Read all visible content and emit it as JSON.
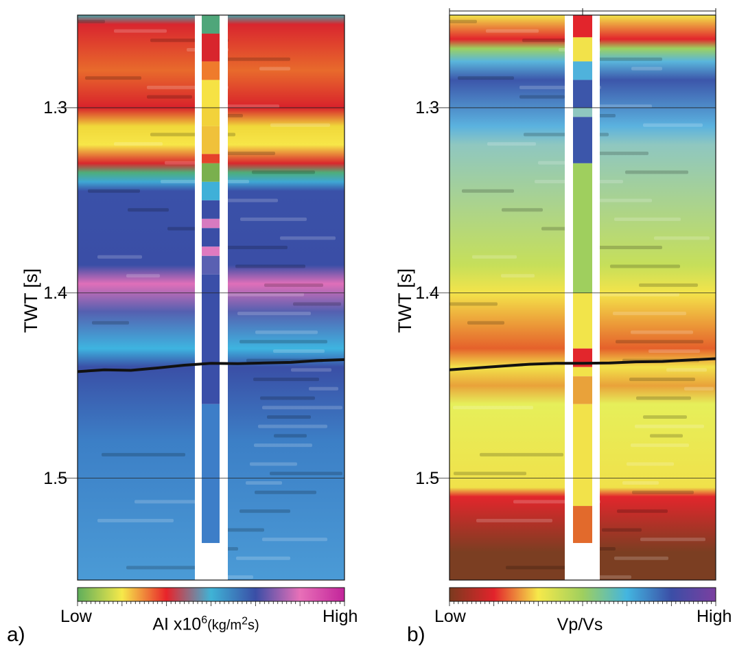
{
  "chart_data": [
    {
      "type": "heatmap",
      "panel_label": "a)",
      "ylabel": "TWT [s]",
      "yticks": [
        1.3,
        1.4,
        1.5
      ],
      "ylim": [
        1.25,
        1.555
      ],
      "colorbar": {
        "low": "Low",
        "high": "High",
        "title_main": "AI x10",
        "title_exp": "6",
        "title_unit_pre": "(kg/m",
        "title_unit_exp": "2",
        "title_unit_post": "s)",
        "colors": [
          "#5fae5b",
          "#f6e94a",
          "#e8232a",
          "#3fb3d6",
          "#3a4ea6",
          "#e870b8",
          "#c2249a"
        ]
      },
      "layers": [
        {
          "twt": 1.25,
          "color": "#4aa3a8"
        },
        {
          "twt": 1.255,
          "color": "#d9262e"
        },
        {
          "twt": 1.28,
          "color": "#e86a2c"
        },
        {
          "twt": 1.3,
          "color": "#d8222b"
        },
        {
          "twt": 1.31,
          "color": "#f0d83a"
        },
        {
          "twt": 1.32,
          "color": "#f7e648"
        },
        {
          "twt": 1.33,
          "color": "#d9272d"
        },
        {
          "twt": 1.335,
          "color": "#4eae7a"
        },
        {
          "twt": 1.34,
          "color": "#3fa7d4"
        },
        {
          "twt": 1.345,
          "color": "#3a51a8"
        },
        {
          "twt": 1.385,
          "color": "#3a4ea6"
        },
        {
          "twt": 1.395,
          "color": "#e06fb9"
        },
        {
          "twt": 1.41,
          "color": "#5560b0"
        },
        {
          "twt": 1.43,
          "color": "#3eb4e0"
        },
        {
          "twt": 1.44,
          "color": "#3a4fa6"
        },
        {
          "twt": 1.48,
          "color": "#3c7fc6"
        },
        {
          "twt": 1.555,
          "color": "#4b9bd6"
        }
      ],
      "horizon": {
        "x": [
          0,
          0.1,
          0.2,
          0.3,
          0.4,
          0.5,
          0.6,
          0.7,
          0.8,
          0.9,
          1.0
        ],
        "twt": [
          1.4425,
          1.4415,
          1.4418,
          1.4405,
          1.439,
          1.438,
          1.4382,
          1.4378,
          1.4375,
          1.4365,
          1.436
        ],
        "color": "#111111"
      },
      "well_log": [
        {
          "twt": 1.25,
          "color": "#4fa67a"
        },
        {
          "twt": 1.26,
          "color": "#d8262d"
        },
        {
          "twt": 1.275,
          "color": "#ef7b2c"
        },
        {
          "twt": 1.285,
          "color": "#f6e244"
        },
        {
          "twt": 1.3,
          "color": "#f2d23a"
        },
        {
          "twt": 1.31,
          "color": "#f0c13a"
        },
        {
          "twt": 1.325,
          "color": "#e5422b"
        },
        {
          "twt": 1.33,
          "color": "#7ab04e"
        },
        {
          "twt": 1.34,
          "color": "#3fb0d8"
        },
        {
          "twt": 1.35,
          "color": "#3a4ea6"
        },
        {
          "twt": 1.36,
          "color": "#d77ac0"
        },
        {
          "twt": 1.365,
          "color": "#3a4ea6"
        },
        {
          "twt": 1.375,
          "color": "#e07ac0"
        },
        {
          "twt": 1.38,
          "color": "#5a60b2"
        },
        {
          "twt": 1.39,
          "color": "#3a4fa8"
        },
        {
          "twt": 1.46,
          "color": "#3d7ec8"
        },
        {
          "twt": 1.535,
          "color": "#ffffff"
        }
      ]
    },
    {
      "type": "heatmap",
      "panel_label": "b)",
      "ylabel": "TWT [s]",
      "yticks": [
        1.3,
        1.4,
        1.5
      ],
      "ylim": [
        1.25,
        1.555
      ],
      "colorbar": {
        "low": "Low",
        "high": "High",
        "title": "Vp/Vs",
        "colors": [
          "#7a3a1e",
          "#e2232b",
          "#f6e94a",
          "#9fcf5e",
          "#43b5e0",
          "#3b4ea6",
          "#7b3fa0"
        ]
      },
      "layers": [
        {
          "twt": 1.25,
          "color": "#f2e64a"
        },
        {
          "twt": 1.263,
          "color": "#e2252c"
        },
        {
          "twt": 1.268,
          "color": "#9cd15f"
        },
        {
          "twt": 1.275,
          "color": "#5ab6dc"
        },
        {
          "twt": 1.285,
          "color": "#3c56aa"
        },
        {
          "twt": 1.31,
          "color": "#5bb2df"
        },
        {
          "twt": 1.32,
          "color": "#8fc7c0"
        },
        {
          "twt": 1.385,
          "color": "#c6df5a"
        },
        {
          "twt": 1.4,
          "color": "#f4e44a"
        },
        {
          "twt": 1.43,
          "color": "#e5612b"
        },
        {
          "twt": 1.44,
          "color": "#f2e24a"
        },
        {
          "twt": 1.45,
          "color": "#e9a23a"
        },
        {
          "twt": 1.46,
          "color": "#e6ef5a"
        },
        {
          "twt": 1.505,
          "color": "#f0e14a"
        },
        {
          "twt": 1.51,
          "color": "#e2262c"
        },
        {
          "twt": 1.54,
          "color": "#7b3e22"
        },
        {
          "twt": 1.555,
          "color": "#7b3e22"
        }
      ],
      "horizon": {
        "x": [
          0,
          0.1,
          0.2,
          0.3,
          0.4,
          0.5,
          0.6,
          0.7,
          0.8,
          0.9,
          1.0
        ],
        "twt": [
          1.4415,
          1.4405,
          1.4395,
          1.4385,
          1.438,
          1.438,
          1.4378,
          1.4372,
          1.437,
          1.4362,
          1.4355
        ],
        "color": "#111111"
      },
      "well_log": [
        {
          "twt": 1.25,
          "color": "#e2252c"
        },
        {
          "twt": 1.262,
          "color": "#f2e24a"
        },
        {
          "twt": 1.275,
          "color": "#4fb2dc"
        },
        {
          "twt": 1.285,
          "color": "#3c56aa"
        },
        {
          "twt": 1.3,
          "color": "#8fc7c0"
        },
        {
          "twt": 1.305,
          "color": "#3c56aa"
        },
        {
          "twt": 1.33,
          "color": "#9fcf5e"
        },
        {
          "twt": 1.4,
          "color": "#f2e44a"
        },
        {
          "twt": 1.43,
          "color": "#e2262c"
        },
        {
          "twt": 1.44,
          "color": "#f2e24a"
        },
        {
          "twt": 1.445,
          "color": "#e9a23a"
        },
        {
          "twt": 1.46,
          "color": "#f2e24a"
        },
        {
          "twt": 1.515,
          "color": "#e26a2c"
        },
        {
          "twt": 1.535,
          "color": "#ffffff"
        }
      ]
    }
  ]
}
